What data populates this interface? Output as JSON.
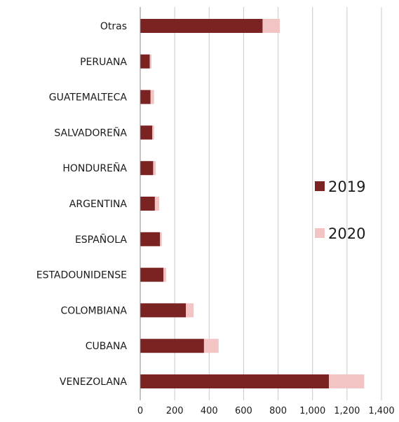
{
  "chart_data": {
    "type": "bar",
    "orientation": "horizontal",
    "stacked": true,
    "categories": [
      "Otras",
      "PERUANA",
      "GUATEMALTECA",
      "SALVADOREÑA",
      "HONDUREÑA",
      "ARGENTINA",
      "ESPAÑOLA",
      "ESTADOUNIDENSE",
      "COLOMBIANA",
      "CUBANA",
      "VENEZOLANA"
    ],
    "series": [
      {
        "name": "2019",
        "color": "#7b2222",
        "values": [
          710,
          55,
          60,
          70,
          75,
          85,
          115,
          135,
          265,
          370,
          1095
        ]
      },
      {
        "name": "2020",
        "color": "#f2c4c4",
        "values": [
          100,
          10,
          20,
          10,
          15,
          25,
          10,
          15,
          45,
          85,
          205
        ]
      }
    ],
    "xticks": [
      "0",
      "200",
      "400",
      "600",
      "800",
      "1,000",
      "1,200",
      "1,400"
    ],
    "xlim": [
      0,
      1400
    ],
    "grid": "vertical",
    "legend_position": "right"
  }
}
